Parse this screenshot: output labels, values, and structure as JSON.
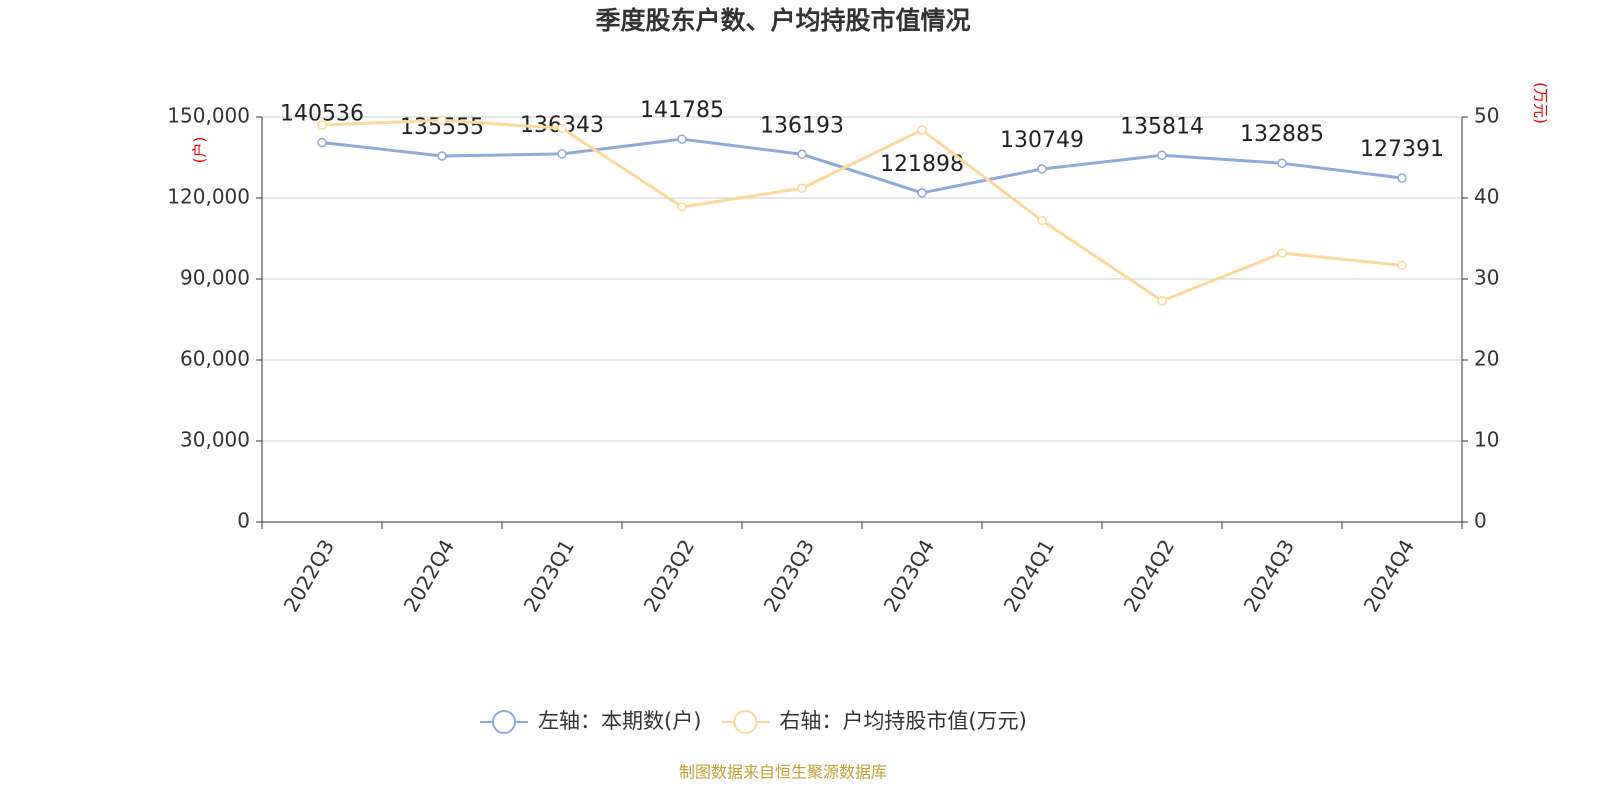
{
  "chart_data": {
    "type": "line",
    "title": "季度股东户数、户均持股市值情况",
    "y_label": "(户)",
    "y2_label": "(万元)",
    "categories": [
      "2022Q3",
      "2022Q4",
      "2023Q1",
      "2023Q2",
      "2023Q3",
      "2023Q4",
      "2024Q1",
      "2024Q2",
      "2024Q3",
      "2024Q4"
    ],
    "series": [
      {
        "name": "左轴：本期数(户)",
        "color": "#8eaad9",
        "values": [
          140536,
          135555,
          136343,
          141785,
          136193,
          121898,
          130749,
          135814,
          132885,
          127391
        ],
        "data_labels": true
      },
      {
        "name": "右轴：户均持股市值(万元)",
        "color": "#fcd99a",
        "axis": "y2",
        "values": [
          49.0,
          49.6,
          48.6,
          38.9,
          41.2,
          48.4,
          37.2,
          27.3,
          33.2,
          31.7
        ]
      }
    ],
    "ylim": [
      0,
      150000
    ],
    "yticks": [
      0,
      {
        "value": 30000,
        "label": "30,000"
      },
      {
        "value": 60000,
        "label": "60,000"
      },
      {
        "value": 90000,
        "label": "90,000"
      },
      {
        "value": 120000,
        "label": "120,000"
      },
      {
        "value": 150000,
        "label": "150,000"
      }
    ],
    "y2lim": [
      0,
      50
    ],
    "y2ticks": [
      0,
      10,
      20,
      30,
      40,
      50
    ],
    "grid": true,
    "legend": "bottom",
    "source": "制图数据来自恒生聚源数据库"
  }
}
